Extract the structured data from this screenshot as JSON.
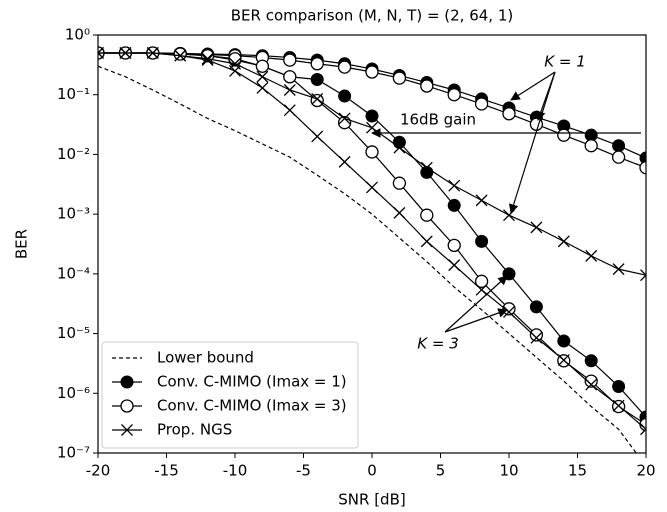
{
  "chart_data": {
    "type": "line",
    "title": "BER comparison (M, N, T) = (2, 64, 1)",
    "x_label": "SNR [dB]",
    "y_label": "BER",
    "log_y": true,
    "legend": "lower left",
    "x": [
      -20,
      -18,
      -16,
      -14,
      -12,
      -10,
      -8,
      -6,
      -4,
      -2,
      0,
      2,
      4,
      6,
      8,
      10,
      12,
      14,
      16,
      18,
      20
    ],
    "xlim": [
      -20,
      20
    ],
    "xticks": [
      -20,
      -15,
      -10,
      -5,
      0,
      5,
      10,
      15,
      20
    ],
    "ylim": [
      1e-07,
      1
    ],
    "yticks": [
      {
        "value": 1e-07,
        "label": "10⁻⁷"
      },
      {
        "value": 1e-06,
        "label": "10⁻⁶"
      },
      {
        "value": 1e-05,
        "label": "10⁻⁵"
      },
      {
        "value": 0.0001,
        "label": "10⁻⁴"
      },
      {
        "value": 0.001,
        "label": "10⁻³"
      },
      {
        "value": 0.01,
        "label": "10⁻²"
      },
      {
        "value": 0.1,
        "label": "10⁻¹"
      },
      {
        "value": 1,
        "label": "10⁰"
      }
    ],
    "series": [
      {
        "name": "Lower bound",
        "color": "#000000",
        "marker": "none",
        "dash": true,
        "values": [
          0.3,
          0.2,
          0.12,
          0.07,
          0.04,
          0.025,
          0.015,
          0.009,
          0.0045,
          0.0022,
          0.001,
          0.0004,
          0.00016,
          6e-05,
          2.5e-05,
          1e-05,
          4e-06,
          1.6e-06,
          6e-07,
          2.5e-07,
          6e-08
        ]
      },
      {
        "name": "Conv. C-MIMO (Imax = 1)",
        "color": "#000000",
        "marker": "filled-circle",
        "dash": false,
        "values": [
          0.5,
          0.5,
          0.5,
          0.49,
          0.48,
          0.47,
          0.45,
          0.42,
          0.38,
          0.33,
          0.27,
          0.21,
          0.16,
          0.12,
          0.085,
          0.06,
          0.042,
          0.03,
          0.021,
          0.014,
          0.0087
        ]
      },
      {
        "name": "Conv. C-MIMO (Imax = 1)",
        "color": "#000000",
        "marker": "filled-circle",
        "dash": false,
        "legend": false,
        "values": [
          0.5,
          0.5,
          0.5,
          0.48,
          0.45,
          0.38,
          0.3,
          0.2,
          0.18,
          0.095,
          0.044,
          0.016,
          0.005,
          0.0014,
          0.00035,
          0.0001,
          2.8e-05,
          7.5e-06,
          3.5e-06,
          1.3e-06,
          4e-07
        ]
      },
      {
        "name": "Conv. C-MIMO (Imax = 3)",
        "color": "#000000",
        "marker": "open-circle",
        "dash": false,
        "values": [
          0.5,
          0.5,
          0.5,
          0.49,
          0.47,
          0.45,
          0.42,
          0.38,
          0.33,
          0.29,
          0.24,
          0.19,
          0.14,
          0.1,
          0.07,
          0.048,
          0.032,
          0.021,
          0.014,
          0.009,
          0.006
        ]
      },
      {
        "name": "Conv. C-MIMO (Imax = 3)",
        "color": "#000000",
        "marker": "open-circle",
        "dash": false,
        "legend": false,
        "values": [
          0.5,
          0.5,
          0.5,
          0.48,
          0.45,
          0.4,
          0.3,
          0.2,
          0.08,
          0.034,
          0.011,
          0.0033,
          0.00096,
          0.0003,
          7.5e-05,
          2.6e-05,
          9.5e-06,
          3.5e-06,
          1.6e-06,
          6e-07,
          3e-07
        ]
      },
      {
        "name": "Prop. NGS",
        "color": "#000000",
        "marker": "cross",
        "dash": false,
        "values": [
          0.5,
          0.5,
          0.5,
          0.45,
          0.4,
          0.33,
          0.2,
          0.12,
          0.085,
          0.04,
          0.028,
          0.013,
          0.006,
          0.003,
          0.0017,
          0.00096,
          0.0006,
          0.00035,
          0.0002,
          0.00012,
          9.5e-05
        ]
      },
      {
        "name": "Prop. NGS",
        "color": "#000000",
        "marker": "cross",
        "dash": false,
        "legend": false,
        "values": [
          0.5,
          0.5,
          0.5,
          0.45,
          0.38,
          0.25,
          0.13,
          0.055,
          0.02,
          0.0075,
          0.0028,
          0.00105,
          0.00035,
          0.00014,
          5.4e-05,
          2.3e-05,
          8.5e-06,
          3.6e-06,
          1.4e-06,
          6.2e-07,
          2.5e-07
        ]
      }
    ],
    "annotations": [
      "K = 1",
      "16dB gain",
      "K = 3"
    ]
  }
}
